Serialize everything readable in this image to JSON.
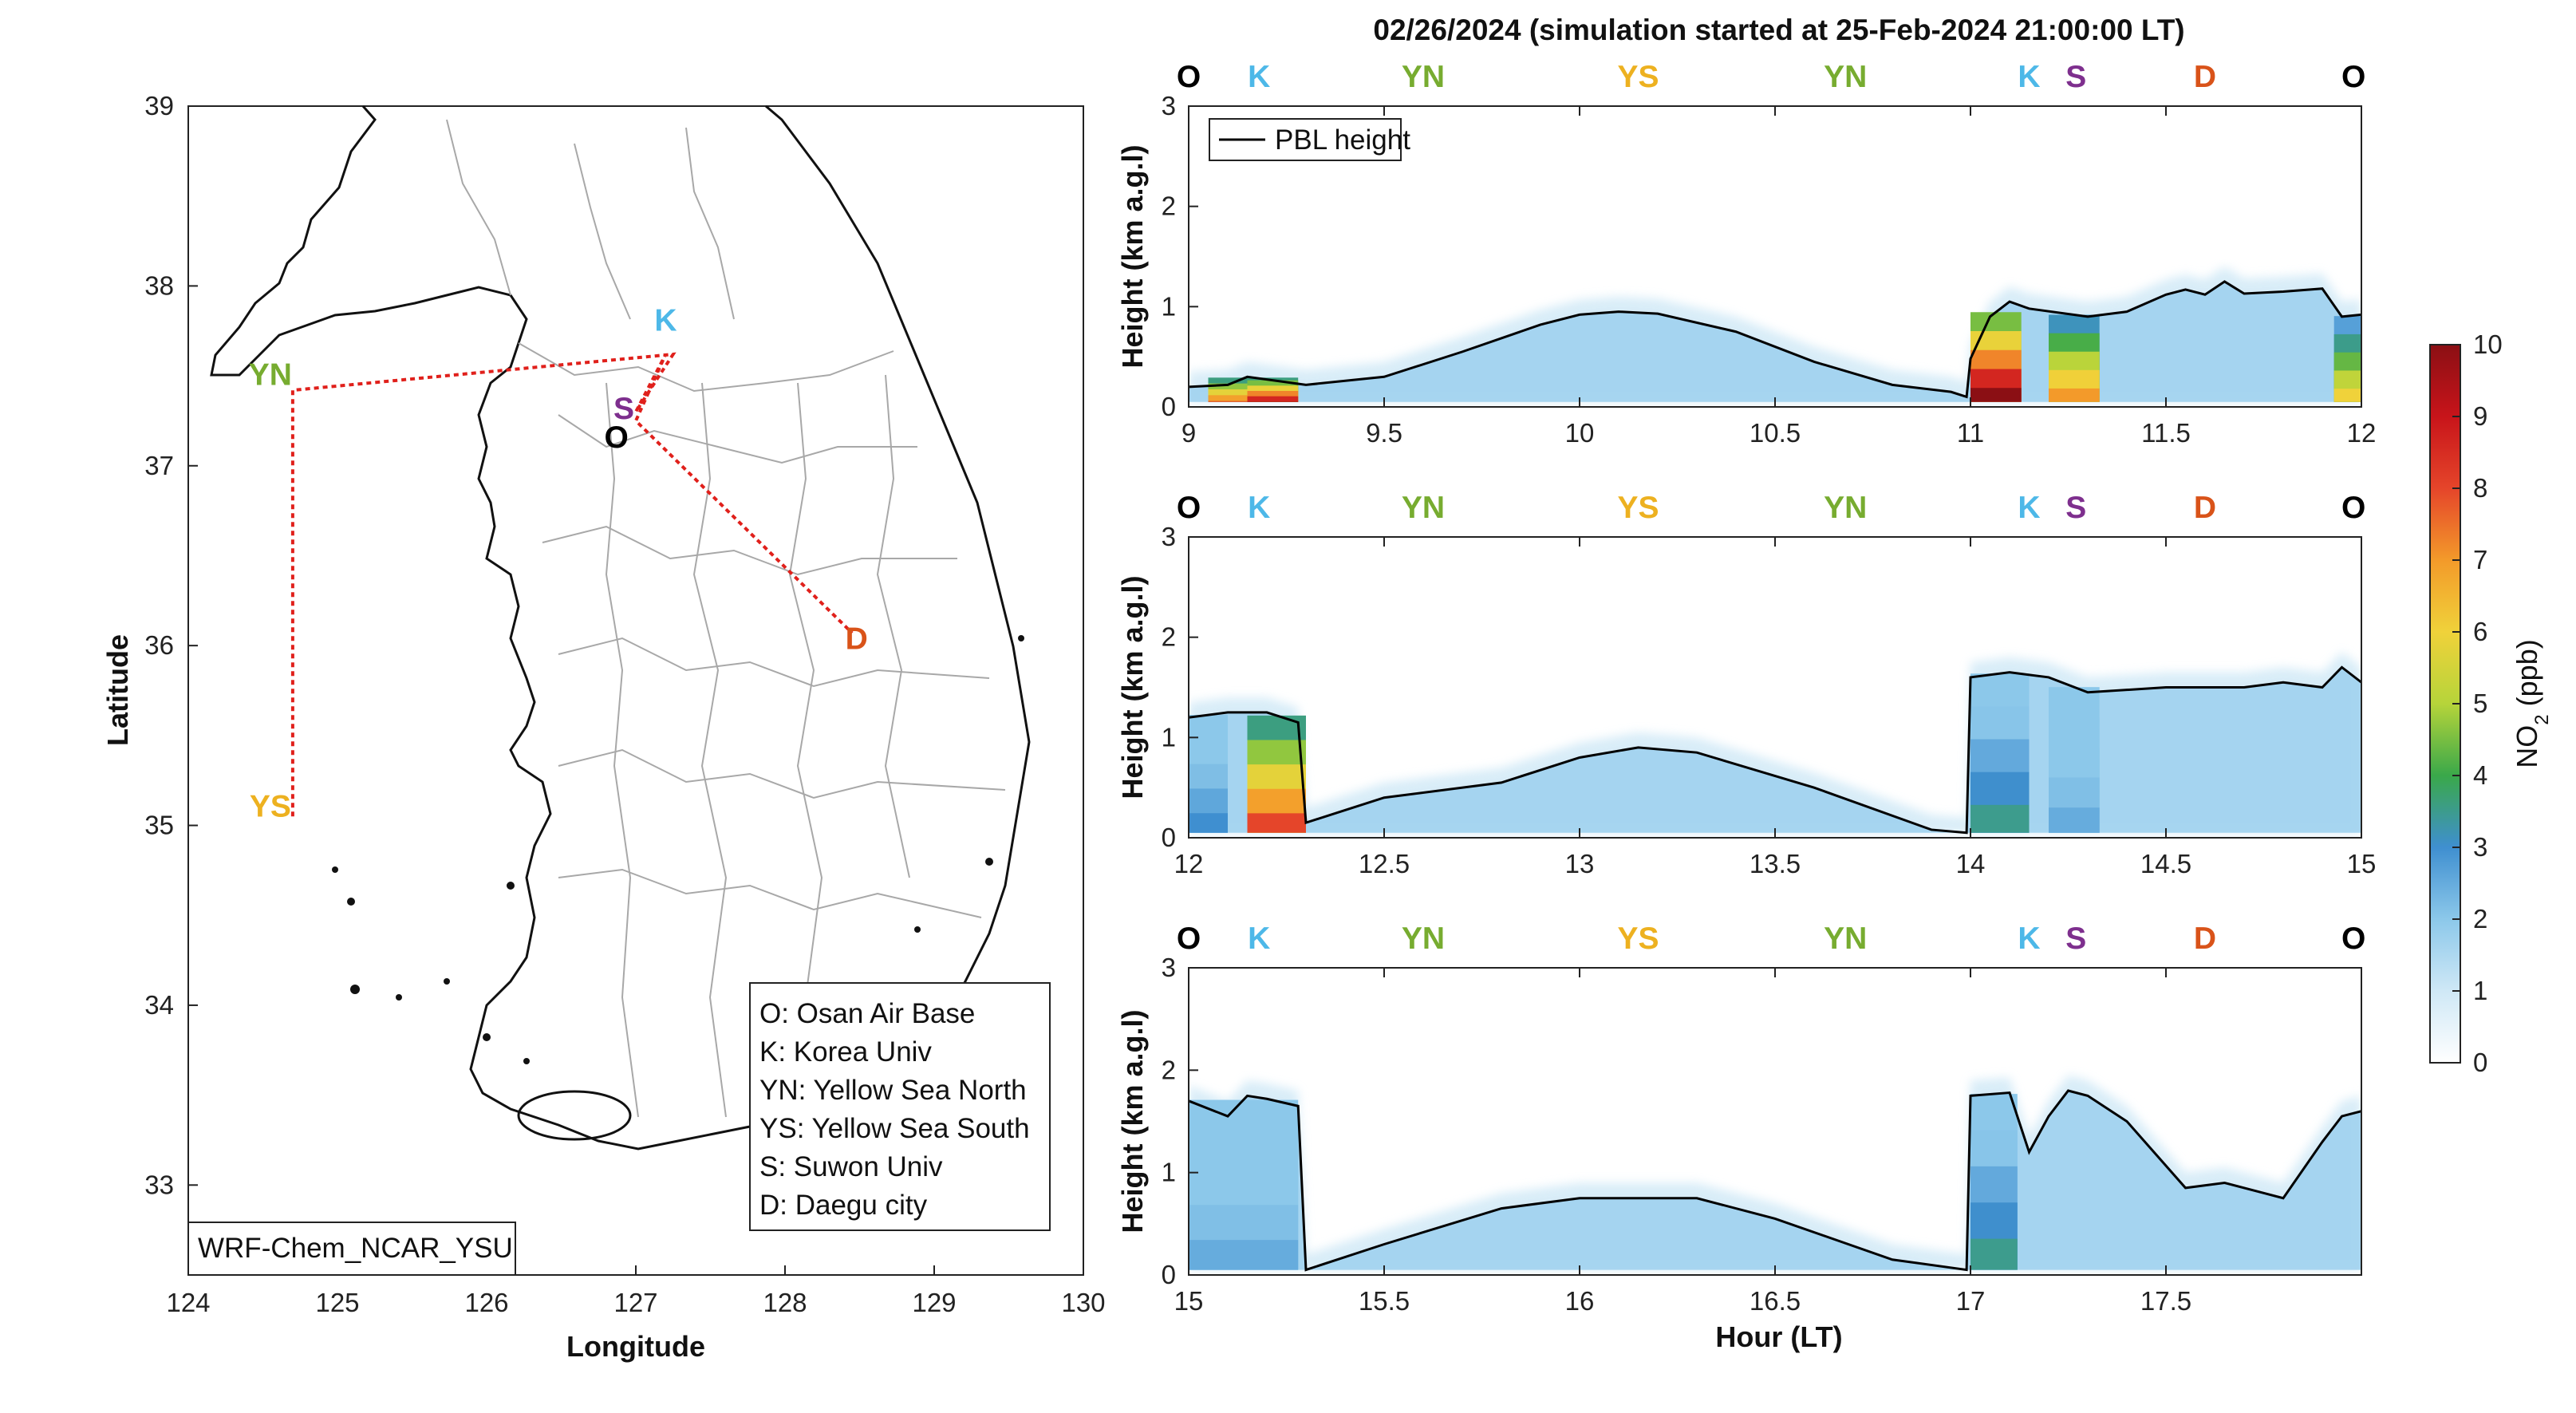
{
  "title": "02/26/2024 (simulation started at 25-Feb-2024 21:00:00 LT)",
  "colors": {
    "O": "#000000",
    "K": "#4DB8E8",
    "YN": "#77AC30",
    "YS": "#EDB120",
    "S": "#7E2F8E",
    "D": "#D95319",
    "track": "#E0201B",
    "pbl": "#000000"
  },
  "map": {
    "xlabel": "Longitude",
    "ylabel": "Latitude",
    "xlim": [
      124,
      130
    ],
    "ylim": [
      32.5,
      39
    ],
    "xticks": [
      "124",
      "125",
      "126",
      "127",
      "128",
      "129",
      "130"
    ],
    "yticks": [
      "33",
      "34",
      "35",
      "36",
      "37",
      "38",
      "39"
    ],
    "model_label": "WRF-Chem_NCAR_YSU",
    "sites": [
      {
        "code": "K",
        "lon": 127.2,
        "lat": 37.75,
        "color": "#4DB8E8"
      },
      {
        "code": "YN",
        "lon": 124.55,
        "lat": 37.45,
        "color": "#77AC30"
      },
      {
        "code": "S",
        "lon": 126.92,
        "lat": 37.26,
        "color": "#7E2F8E"
      },
      {
        "code": "O",
        "lon": 126.87,
        "lat": 37.1,
        "color": "#000000"
      },
      {
        "code": "D",
        "lon": 128.48,
        "lat": 35.98,
        "color": "#D95319"
      },
      {
        "code": "YS",
        "lon": 124.55,
        "lat": 35.05,
        "color": "#EDB120"
      }
    ],
    "legend": [
      "O: Osan Air Base",
      "K: Korea Univ",
      "YN: Yellow Sea North",
      "YS: Yellow Sea South",
      "S: Suwon Univ",
      "D: Daegu city"
    ]
  },
  "chart_data": [
    {
      "type": "heatmap",
      "xlim": [
        9,
        12
      ],
      "ylim": [
        0,
        3
      ],
      "xticks": [
        "9",
        "9.5",
        "10",
        "10.5",
        "11",
        "11.5",
        "12"
      ],
      "yticks": [
        "0",
        "1",
        "2",
        "3"
      ],
      "ylabel": "Height (km a.g.l)",
      "legend": "PBL height",
      "site_markers": [
        [
          "O",
          9
        ],
        [
          "K",
          9.18
        ],
        [
          "YN",
          9.6
        ],
        [
          "YS",
          10.15
        ],
        [
          "YN",
          10.68
        ],
        [
          "K",
          11.15
        ],
        [
          "S",
          11.27
        ],
        [
          "D",
          11.6
        ],
        [
          "O",
          11.98
        ]
      ],
      "pbl_height": {
        "x": [
          9,
          9.1,
          9.15,
          9.3,
          9.5,
          9.7,
          9.9,
          10.0,
          10.1,
          10.2,
          10.4,
          10.6,
          10.8,
          10.95,
          10.99,
          11.0,
          11.05,
          11.1,
          11.15,
          11.3,
          11.4,
          11.5,
          11.55,
          11.6,
          11.65,
          11.7,
          11.8,
          11.9,
          11.95,
          12.0
        ],
        "y": [
          0.2,
          0.22,
          0.3,
          0.22,
          0.3,
          0.55,
          0.82,
          0.92,
          0.95,
          0.93,
          0.75,
          0.45,
          0.22,
          0.15,
          0.1,
          0.48,
          0.9,
          1.05,
          0.98,
          0.9,
          0.95,
          1.12,
          1.17,
          1.12,
          1.25,
          1.13,
          1.15,
          1.18,
          0.9,
          0.92
        ]
      },
      "no2_segments": [
        {
          "x": [
            9.05,
            9.28
          ],
          "level": 8
        },
        {
          "x": [
            9.15,
            9.28
          ],
          "level": 10
        },
        {
          "x": [
            11.0,
            11.13
          ],
          "level": 10
        },
        {
          "x": [
            11.2,
            11.33
          ],
          "level": 7
        },
        {
          "x": [
            11.93,
            12.0
          ],
          "level": 6
        }
      ]
    },
    {
      "type": "heatmap",
      "xlim": [
        12,
        15
      ],
      "ylim": [
        0,
        3
      ],
      "xticks": [
        "12",
        "12.5",
        "13",
        "13.5",
        "14",
        "14.5",
        "15"
      ],
      "yticks": [
        "0",
        "1",
        "2",
        "3"
      ],
      "ylabel": "Height (km a.g.l)",
      "site_markers": [
        [
          "O",
          12
        ],
        [
          "K",
          12.18
        ],
        [
          "YN",
          12.6
        ],
        [
          "YS",
          13.15
        ],
        [
          "YN",
          13.68
        ],
        [
          "K",
          14.15
        ],
        [
          "S",
          14.27
        ],
        [
          "D",
          14.6
        ],
        [
          "O",
          14.98
        ]
      ],
      "pbl_height": {
        "x": [
          12,
          12.1,
          12.2,
          12.28,
          12.3,
          12.5,
          12.8,
          13.0,
          13.15,
          13.3,
          13.6,
          13.9,
          13.99,
          14.0,
          14.1,
          14.2,
          14.3,
          14.5,
          14.6,
          14.7,
          14.8,
          14.9,
          14.95,
          15.0
        ],
        "y": [
          1.2,
          1.25,
          1.25,
          1.15,
          0.15,
          0.4,
          0.55,
          0.8,
          0.9,
          0.85,
          0.5,
          0.08,
          0.05,
          1.6,
          1.65,
          1.6,
          1.45,
          1.5,
          1.5,
          1.5,
          1.55,
          1.5,
          1.7,
          1.55
        ]
      },
      "no2_segments": [
        {
          "x": [
            12.0,
            12.1
          ],
          "level": 3
        },
        {
          "x": [
            12.15,
            12.3
          ],
          "level": 8
        },
        {
          "x": [
            14.0,
            14.15
          ],
          "level": 3.5
        },
        {
          "x": [
            14.2,
            14.33
          ],
          "level": 2.5
        }
      ]
    },
    {
      "type": "heatmap",
      "xlim": [
        15,
        18
      ],
      "ylim": [
        0,
        3
      ],
      "xticks": [
        "15",
        "15.5",
        "16",
        "16.5",
        "17",
        "17.5"
      ],
      "yticks": [
        "0",
        "1",
        "2",
        "3"
      ],
      "ylabel": "Height (km a.g.l)",
      "xlabel": "Hour (LT)",
      "site_markers": [
        [
          "O",
          15
        ],
        [
          "K",
          15.18
        ],
        [
          "YN",
          15.6
        ],
        [
          "YS",
          16.15
        ],
        [
          "YN",
          16.68
        ],
        [
          "K",
          17.15
        ],
        [
          "S",
          17.27
        ],
        [
          "D",
          17.6
        ],
        [
          "O",
          17.98
        ]
      ],
      "pbl_height": {
        "x": [
          15,
          15.1,
          15.15,
          15.2,
          15.28,
          15.3,
          15.5,
          15.8,
          16.0,
          16.3,
          16.5,
          16.8,
          16.99,
          17.0,
          17.1,
          17.15,
          17.2,
          17.25,
          17.3,
          17.4,
          17.55,
          17.65,
          17.75,
          17.8,
          17.9,
          17.95,
          18.0
        ],
        "y": [
          1.7,
          1.55,
          1.75,
          1.72,
          1.65,
          0.05,
          0.3,
          0.65,
          0.75,
          0.75,
          0.55,
          0.15,
          0.05,
          1.75,
          1.78,
          1.2,
          1.55,
          1.8,
          1.75,
          1.5,
          0.85,
          0.9,
          0.8,
          0.75,
          1.3,
          1.55,
          1.6
        ]
      },
      "no2_segments": [
        {
          "x": [
            15.0,
            15.28
          ],
          "level": 2.5
        },
        {
          "x": [
            17.0,
            17.12
          ],
          "level": 3.5
        }
      ]
    }
  ],
  "colorbar": {
    "label": "NO2 (ppb)",
    "ticks": [
      "0",
      "1",
      "2",
      "3",
      "4",
      "5",
      "6",
      "7",
      "8",
      "9",
      "10"
    ],
    "range": [
      0,
      10
    ]
  }
}
